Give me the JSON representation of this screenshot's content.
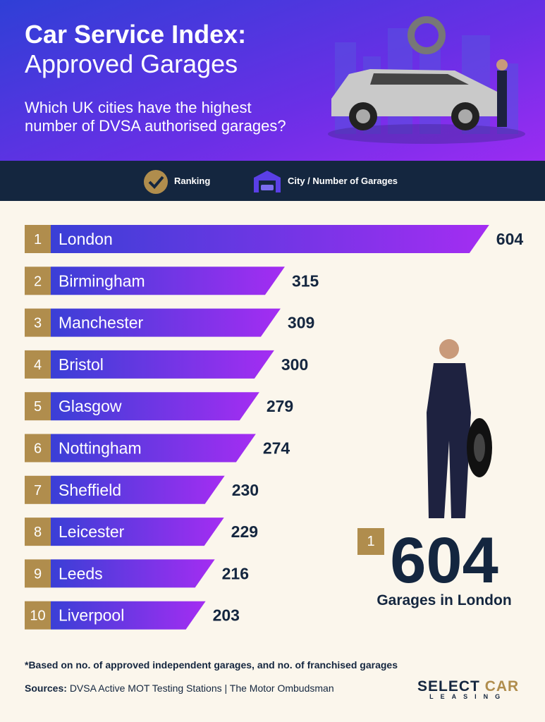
{
  "header": {
    "title_line1": "Car Service Index:",
    "title_line2": "Approved Garages",
    "subtitle": "Which UK cities have the highest number of DVSA authorised garages?"
  },
  "legend": {
    "ranking": "Ranking",
    "city": "City / Number of Garages"
  },
  "chart_data": {
    "type": "bar",
    "orientation": "horizontal",
    "ranks": [
      1,
      2,
      3,
      4,
      5,
      6,
      7,
      8,
      9,
      10
    ],
    "categories": [
      "London",
      "Birmingham",
      "Manchester",
      "Bristol",
      "Glasgow",
      "Nottingham",
      "Sheffield",
      "Leicester",
      "Leeds",
      "Liverpool"
    ],
    "values": [
      604,
      315,
      309,
      300,
      279,
      274,
      230,
      229,
      216,
      203
    ],
    "color_start": "#3a3fd6",
    "color_end": "#a42df2"
  },
  "highlight": {
    "rank": 1,
    "value": 604,
    "label": "Garages in London"
  },
  "footer": {
    "note": "*Based on no. of approved independent garages, and no. of franchised garages",
    "sources_label": "Sources:",
    "sources": "DVSA Active MOT Testing Stations | The Motor Ombudsman"
  },
  "logo": {
    "select": "SELECT",
    "car": "CAR",
    "sub": "LEASING"
  }
}
